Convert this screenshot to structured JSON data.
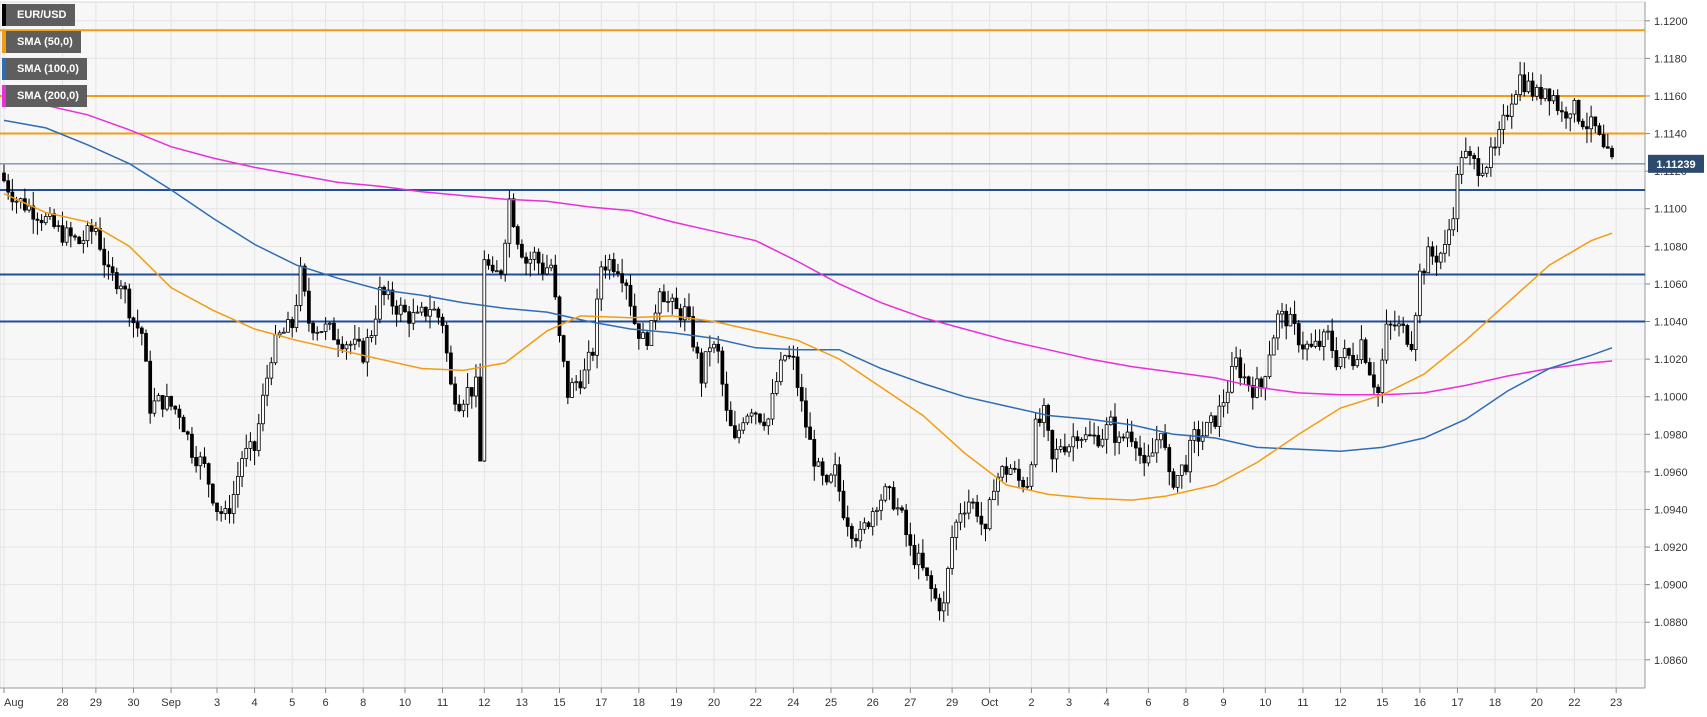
{
  "chart_data": {
    "type": "candlestick",
    "title": "",
    "xlabel": "",
    "ylabel": "",
    "ylim": [
      1.0845,
      1.121
    ],
    "yticks": [
      "1.0860",
      "1.0880",
      "1.0900",
      "1.0920",
      "1.0940",
      "1.0960",
      "1.0980",
      "1.1000",
      "1.1020",
      "1.1040",
      "1.1060",
      "1.1080",
      "1.1100",
      "1.1120",
      "1.1140",
      "1.1160",
      "1.1180",
      "1.1200"
    ],
    "ytick_values": [
      1.086,
      1.088,
      1.09,
      1.092,
      1.094,
      1.096,
      1.098,
      1.1,
      1.102,
      1.104,
      1.106,
      1.108,
      1.11,
      1.112,
      1.114,
      1.116,
      1.118,
      1.12
    ],
    "xticks": [
      "Aug",
      "28",
      "29",
      "30",
      "Sep",
      "3",
      "4",
      "5",
      "6",
      "8",
      "10",
      "11",
      "12",
      "13",
      "15",
      "17",
      "18",
      "19",
      "20",
      "22",
      "24",
      "25",
      "26",
      "27",
      "29",
      "Oct",
      "2",
      "3",
      "4",
      "6",
      "8",
      "9",
      "10",
      "11",
      "12",
      "15",
      "16",
      "17",
      "18",
      "20",
      "22",
      "23"
    ],
    "xtick_bars": [
      0,
      14,
      22,
      31,
      40,
      51,
      60,
      69,
      77,
      86,
      96,
      105,
      115,
      124,
      133,
      143,
      152,
      161,
      170,
      180,
      189,
      198,
      208,
      217,
      227,
      236,
      246,
      255,
      264,
      274,
      283,
      292,
      302,
      311,
      320,
      330,
      339,
      348,
      357,
      367,
      376,
      386
    ],
    "current_price": {
      "label": "1.11239",
      "value": 1.11239,
      "color": "#2c4a6e"
    },
    "candle_colors": {
      "up": "#ffffff",
      "down": "#000000",
      "outline": "#000000"
    },
    "horizontal_levels": [
      {
        "value": 1.1195,
        "color": "#f39c12"
      },
      {
        "value": 1.116,
        "color": "#f39c12"
      },
      {
        "value": 1.114,
        "color": "#f39c12"
      },
      {
        "value": 1.111,
        "color": "#1f4e9c"
      },
      {
        "value": 1.1065,
        "color": "#1f4e9c"
      },
      {
        "value": 1.104,
        "color": "#1f4e9c"
      }
    ],
    "legend": [
      {
        "name": "EUR/USD",
        "color": "#000000"
      },
      {
        "name": "SMA (50,0)",
        "color": "#f39c12"
      },
      {
        "name": "SMA (100,0)",
        "color": "#2e6db4"
      },
      {
        "name": "SMA (200,0)",
        "color": "#e82fd9"
      }
    ],
    "anchors": [
      [
        0,
        1.1115
      ],
      [
        3,
        1.1105
      ],
      [
        8,
        1.1098
      ],
      [
        13,
        1.1088
      ],
      [
        18,
        1.1082
      ],
      [
        22,
        1.109
      ],
      [
        25,
        1.1064
      ],
      [
        28,
        1.1062
      ],
      [
        31,
        1.104
      ],
      [
        33,
        1.1034
      ],
      [
        35,
        1.0995
      ],
      [
        38,
        1.0998
      ],
      [
        42,
        1.0992
      ],
      [
        45,
        1.0972
      ],
      [
        48,
        1.0962
      ],
      [
        51,
        1.0941
      ],
      [
        53,
        1.0936
      ],
      [
        55,
        1.0948
      ],
      [
        57,
        1.0968
      ],
      [
        60,
        1.0972
      ],
      [
        62,
        1.0998
      ],
      [
        64,
        1.1023
      ],
      [
        66,
        1.1032
      ],
      [
        69,
        1.1038
      ],
      [
        71,
        1.1065
      ],
      [
        73,
        1.104
      ],
      [
        75,
        1.1037
      ],
      [
        77,
        1.1036
      ],
      [
        80,
        1.1032
      ],
      [
        83,
        1.1028
      ],
      [
        86,
        1.1023
      ],
      [
        88,
        1.1035
      ],
      [
        90,
        1.1055
      ],
      [
        93,
        1.105
      ],
      [
        96,
        1.1044
      ],
      [
        99,
        1.1041
      ],
      [
        102,
        1.1048
      ],
      [
        105,
        1.104
      ],
      [
        107,
        1.1005
      ],
      [
        109,
        1.0998
      ],
      [
        111,
        1.1003
      ],
      [
        113,
        1.1005
      ],
      [
        114,
        1.0965
      ],
      [
        115,
        1.1075
      ],
      [
        117,
        1.1062
      ],
      [
        119,
        1.1068
      ],
      [
        121,
        1.1105
      ],
      [
        123,
        1.1085
      ],
      [
        125,
        1.1072
      ],
      [
        127,
        1.1075
      ],
      [
        129,
        1.1068
      ],
      [
        131,
        1.107
      ],
      [
        133,
        1.103
      ],
      [
        135,
        1.1002
      ],
      [
        137,
        1.1008
      ],
      [
        139,
        1.1012
      ],
      [
        141,
        1.1025
      ],
      [
        143,
        1.107
      ],
      [
        145,
        1.1072
      ],
      [
        147,
        1.107
      ],
      [
        149,
        1.1062
      ],
      [
        151,
        1.104
      ],
      [
        153,
        1.103
      ],
      [
        155,
        1.1035
      ],
      [
        157,
        1.106
      ],
      [
        159,
        1.105
      ],
      [
        161,
        1.1045
      ],
      [
        163,
        1.1045
      ],
      [
        165,
        1.103
      ],
      [
        167,
        1.101
      ],
      [
        169,
        1.1028
      ],
      [
        171,
        1.1022
      ],
      [
        173,
        1.099
      ],
      [
        175,
        1.0975
      ],
      [
        177,
        1.099
      ],
      [
        179,
        1.0995
      ],
      [
        181,
        1.099
      ],
      [
        183,
        1.0988
      ],
      [
        185,
        1.1008
      ],
      [
        187,
        1.1022
      ],
      [
        189,
        1.1018
      ],
      [
        191,
        1.0995
      ],
      [
        193,
        1.0975
      ],
      [
        195,
        1.096
      ],
      [
        197,
        1.095
      ],
      [
        199,
        1.096
      ],
      [
        201,
        1.094
      ],
      [
        203,
        1.093
      ],
      [
        205,
        1.0925
      ],
      [
        207,
        1.0935
      ],
      [
        209,
        1.0945
      ],
      [
        211,
        1.0948
      ],
      [
        213,
        1.0945
      ],
      [
        215,
        1.0935
      ],
      [
        217,
        1.0918
      ],
      [
        219,
        1.0912
      ],
      [
        221,
        1.0902
      ],
      [
        223,
        1.0892
      ],
      [
        225,
        1.0888
      ],
      [
        227,
        1.0925
      ],
      [
        229,
        1.094
      ],
      [
        231,
        1.0945
      ],
      [
        233,
        1.094
      ],
      [
        235,
        1.0925
      ],
      [
        237,
        1.0955
      ],
      [
        239,
        1.096
      ],
      [
        241,
        1.0962
      ],
      [
        243,
        1.0955
      ],
      [
        245,
        1.0955
      ],
      [
        247,
        1.0983
      ],
      [
        249,
        1.099
      ],
      [
        251,
        1.0965
      ],
      [
        253,
        1.0975
      ],
      [
        255,
        1.0975
      ],
      [
        257,
        1.0982
      ],
      [
        259,
        1.0978
      ],
      [
        261,
        1.0978
      ],
      [
        263,
        1.098
      ],
      [
        265,
        1.0985
      ],
      [
        267,
        1.0975
      ],
      [
        269,
        1.0982
      ],
      [
        271,
        1.0978
      ],
      [
        273,
        1.096
      ],
      [
        275,
        1.097
      ],
      [
        277,
        1.0985
      ],
      [
        279,
        1.0955
      ],
      [
        281,
        1.0958
      ],
      [
        283,
        1.0965
      ],
      [
        285,
        1.0978
      ],
      [
        287,
        1.098
      ],
      [
        289,
        1.0985
      ],
      [
        291,
        1.0992
      ],
      [
        293,
        1.1005
      ],
      [
        295,
        1.1018
      ],
      [
        297,
        1.101
      ],
      [
        299,
        1.1005
      ],
      [
        301,
        1.1005
      ],
      [
        303,
        1.1025
      ],
      [
        305,
        1.1042
      ],
      [
        307,
        1.1042
      ],
      [
        309,
        1.1035
      ],
      [
        311,
        1.1028
      ],
      [
        313,
        1.1025
      ],
      [
        315,
        1.1028
      ],
      [
        317,
        1.1032
      ],
      [
        319,
        1.102
      ],
      [
        321,
        1.1022
      ],
      [
        323,
        1.102
      ],
      [
        325,
        1.103
      ],
      [
        327,
        1.1015
      ],
      [
        329,
        1.1002
      ],
      [
        331,
        1.1035
      ],
      [
        333,
        1.1038
      ],
      [
        335,
        1.1035
      ],
      [
        337,
        1.103
      ],
      [
        339,
        1.1065
      ],
      [
        341,
        1.1075
      ],
      [
        343,
        1.1075
      ],
      [
        345,
        1.1078
      ],
      [
        347,
        1.11
      ],
      [
        349,
        1.113
      ],
      [
        351,
        1.1125
      ],
      [
        353,
        1.1123
      ],
      [
        355,
        1.1125
      ],
      [
        357,
        1.113
      ],
      [
        359,
        1.1145
      ],
      [
        361,
        1.116
      ],
      [
        363,
        1.117
      ],
      [
        365,
        1.1165
      ],
      [
        367,
        1.116
      ],
      [
        369,
        1.1165
      ],
      [
        371,
        1.116
      ],
      [
        373,
        1.115
      ],
      [
        375,
        1.1155
      ],
      [
        377,
        1.115
      ],
      [
        379,
        1.1145
      ],
      [
        381,
        1.1142
      ],
      [
        383,
        1.113
      ],
      [
        385,
        1.1124
      ]
    ],
    "sma_50": [
      [
        0,
        1.1108
      ],
      [
        10,
        1.1098
      ],
      [
        20,
        1.1093
      ],
      [
        30,
        1.108
      ],
      [
        40,
        1.1058
      ],
      [
        50,
        1.1046
      ],
      [
        60,
        1.1036
      ],
      [
        70,
        1.103
      ],
      [
        80,
        1.1025
      ],
      [
        90,
        1.102
      ],
      [
        100,
        1.1015
      ],
      [
        110,
        1.1014
      ],
      [
        120,
        1.1018
      ],
      [
        130,
        1.1035
      ],
      [
        138,
        1.1043
      ],
      [
        150,
        1.1042
      ],
      [
        160,
        1.1043
      ],
      [
        170,
        1.104
      ],
      [
        180,
        1.1035
      ],
      [
        190,
        1.103
      ],
      [
        200,
        1.102
      ],
      [
        210,
        1.1005
      ],
      [
        220,
        1.099
      ],
      [
        230,
        1.097
      ],
      [
        240,
        1.0953
      ],
      [
        250,
        1.0948
      ],
      [
        260,
        1.0946
      ],
      [
        270,
        1.0945
      ],
      [
        278,
        1.0947
      ],
      [
        290,
        1.0953
      ],
      [
        300,
        1.0965
      ],
      [
        310,
        1.098
      ],
      [
        320,
        1.0994
      ],
      [
        330,
        1.1001
      ],
      [
        340,
        1.1012
      ],
      [
        350,
        1.103
      ],
      [
        360,
        1.105
      ],
      [
        370,
        1.107
      ],
      [
        380,
        1.1083
      ],
      [
        385,
        1.1087
      ]
    ],
    "sma_100": [
      [
        0,
        1.1147
      ],
      [
        10,
        1.1143
      ],
      [
        20,
        1.1134
      ],
      [
        30,
        1.1124
      ],
      [
        40,
        1.111
      ],
      [
        50,
        1.1095
      ],
      [
        60,
        1.1081
      ],
      [
        70,
        1.107
      ],
      [
        80,
        1.1063
      ],
      [
        90,
        1.1057
      ],
      [
        100,
        1.1054
      ],
      [
        110,
        1.105
      ],
      [
        120,
        1.1047
      ],
      [
        130,
        1.1045
      ],
      [
        140,
        1.104
      ],
      [
        150,
        1.1036
      ],
      [
        160,
        1.1034
      ],
      [
        170,
        1.1031
      ],
      [
        180,
        1.1026
      ],
      [
        190,
        1.1025
      ],
      [
        200,
        1.1025
      ],
      [
        210,
        1.1015
      ],
      [
        220,
        1.1007
      ],
      [
        230,
        1.1
      ],
      [
        240,
        1.0995
      ],
      [
        250,
        1.099
      ],
      [
        260,
        1.0988
      ],
      [
        270,
        1.0985
      ],
      [
        280,
        1.098
      ],
      [
        290,
        1.0978
      ],
      [
        300,
        1.0973
      ],
      [
        310,
        1.0972
      ],
      [
        320,
        1.0971
      ],
      [
        330,
        1.0973
      ],
      [
        340,
        1.0978
      ],
      [
        350,
        1.0988
      ],
      [
        360,
        1.1003
      ],
      [
        370,
        1.1015
      ],
      [
        380,
        1.1022
      ],
      [
        385,
        1.1026
      ]
    ],
    "sma_200": [
      [
        0,
        1.1162
      ],
      [
        10,
        1.1155
      ],
      [
        20,
        1.115
      ],
      [
        30,
        1.1142
      ],
      [
        40,
        1.1133
      ],
      [
        50,
        1.1127
      ],
      [
        60,
        1.1122
      ],
      [
        70,
        1.1118
      ],
      [
        80,
        1.1114
      ],
      [
        90,
        1.1112
      ],
      [
        100,
        1.1109
      ],
      [
        110,
        1.1107
      ],
      [
        120,
        1.1105
      ],
      [
        130,
        1.1104
      ],
      [
        140,
        1.1101
      ],
      [
        150,
        1.1099
      ],
      [
        160,
        1.1093
      ],
      [
        170,
        1.1088
      ],
      [
        180,
        1.1083
      ],
      [
        190,
        1.1072
      ],
      [
        200,
        1.106
      ],
      [
        210,
        1.105
      ],
      [
        220,
        1.1042
      ],
      [
        230,
        1.1036
      ],
      [
        240,
        1.103
      ],
      [
        250,
        1.1025
      ],
      [
        260,
        1.102
      ],
      [
        270,
        1.1016
      ],
      [
        280,
        1.1013
      ],
      [
        290,
        1.101
      ],
      [
        300,
        1.1005
      ],
      [
        310,
        1.1002
      ],
      [
        320,
        1.1001
      ],
      [
        330,
        1.1001
      ],
      [
        340,
        1.1002
      ],
      [
        350,
        1.1006
      ],
      [
        360,
        1.1011
      ],
      [
        370,
        1.1015
      ],
      [
        380,
        1.1018
      ],
      [
        385,
        1.1019
      ]
    ]
  }
}
